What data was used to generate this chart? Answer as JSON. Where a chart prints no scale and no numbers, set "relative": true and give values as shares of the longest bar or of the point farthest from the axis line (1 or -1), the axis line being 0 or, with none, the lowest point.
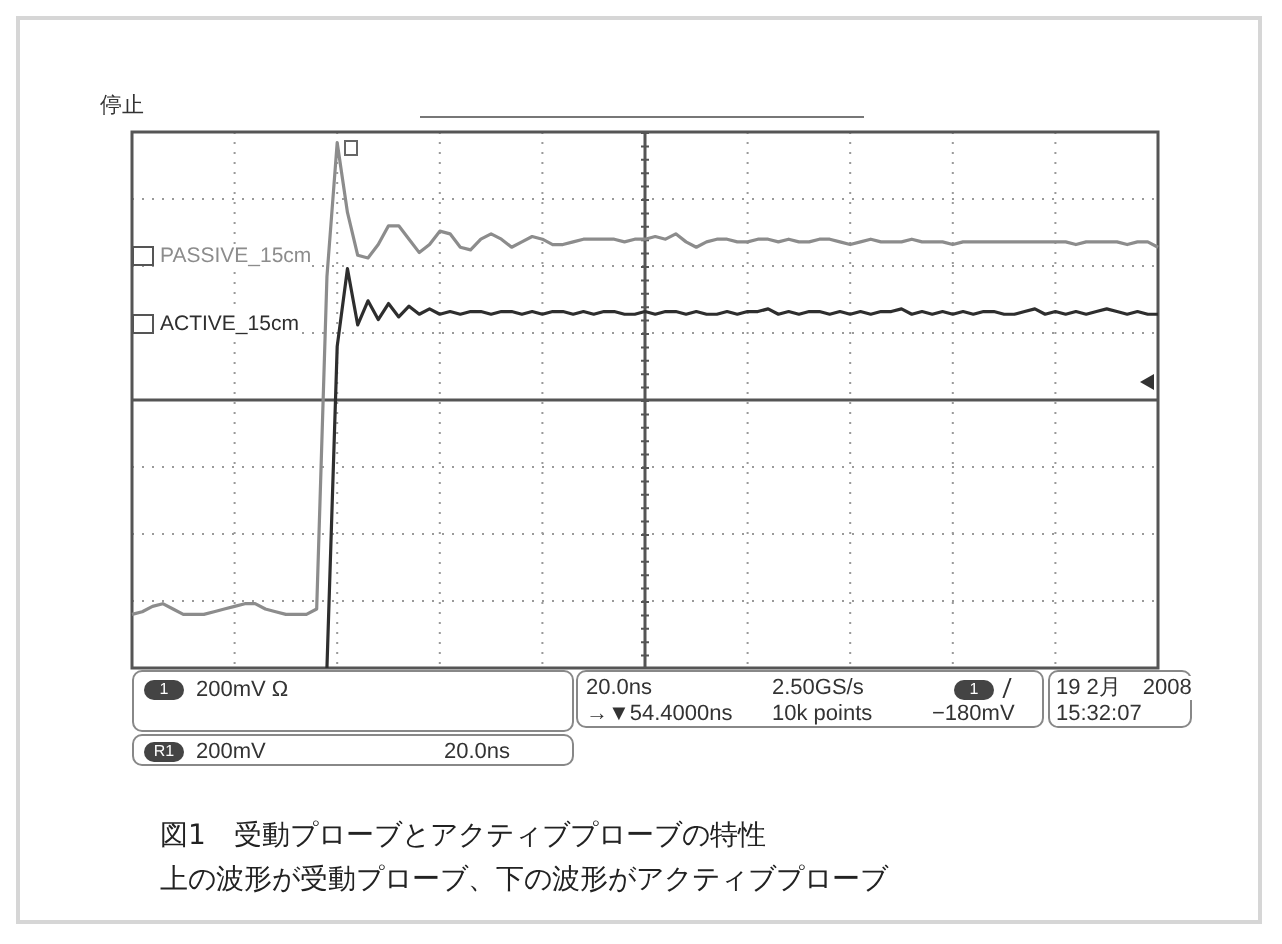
{
  "chart_data": {
    "type": "line",
    "title": "図1　受動プローブとアクティブプローブの特性",
    "subtitle": "上の波形が受動プローブ、下の波形がアクティブプローブ",
    "relative": true,
    "grid": true,
    "legend": false,
    "marker": "none",
    "line_style": "solid",
    "categories": [
      null,
      null,
      null,
      null,
      null,
      null,
      null,
      null,
      null,
      null,
      null,
      null,
      null,
      null,
      null,
      null,
      null,
      null,
      null,
      null,
      null,
      null,
      null,
      null,
      null,
      null,
      null,
      null,
      null,
      null,
      null,
      null,
      null,
      null,
      null,
      null,
      null,
      null,
      null,
      null,
      null,
      null,
      null,
      null,
      null,
      null,
      null,
      null,
      null,
      null,
      null,
      null,
      null,
      null,
      null,
      null,
      null,
      null,
      null,
      null,
      null,
      null,
      null,
      null,
      null,
      null,
      null,
      null,
      null,
      null,
      null,
      null,
      null,
      null,
      null,
      null,
      null,
      null,
      null,
      null,
      null,
      null,
      null,
      null,
      null,
      null,
      null,
      null,
      null,
      null,
      null,
      null,
      null,
      null,
      null,
      null,
      null,
      null,
      null,
      null,
      null
    ],
    "series": [
      {
        "name": "PASSIVE_15cm",
        "color": "#8c8c8c",
        "values": [
          -0.8,
          -0.79,
          -0.77,
          -0.76,
          -0.78,
          -0.8,
          -0.8,
          -0.8,
          -0.79,
          -0.78,
          -0.77,
          -0.76,
          -0.76,
          -0.78,
          -0.79,
          -0.8,
          -0.8,
          -0.8,
          -0.78,
          0.46,
          0.96,
          0.7,
          0.54,
          0.53,
          0.58,
          0.65,
          0.65,
          0.6,
          0.55,
          0.58,
          0.63,
          0.62,
          0.57,
          0.56,
          0.6,
          0.62,
          0.6,
          0.57,
          0.59,
          0.61,
          0.6,
          0.58,
          0.58,
          0.59,
          0.6,
          0.6,
          0.6,
          0.6,
          0.59,
          0.6,
          0.6,
          0.61,
          0.6,
          0.62,
          0.59,
          0.57,
          0.59,
          0.6,
          0.6,
          0.59,
          0.59,
          0.6,
          0.6,
          0.59,
          0.6,
          0.59,
          0.59,
          0.6,
          0.6,
          0.59,
          0.58,
          0.59,
          0.6,
          0.59,
          0.59,
          0.59,
          0.6,
          0.59,
          0.59,
          0.59,
          0.58,
          0.59,
          0.59,
          0.59,
          0.59,
          0.59,
          0.59,
          0.59,
          0.59,
          0.59,
          0.59,
          0.59,
          0.58,
          0.59,
          0.59,
          0.59,
          0.59,
          0.58,
          0.59,
          0.59,
          0.57
        ]
      },
      {
        "name": "ACTIVE_15cm",
        "color": "#2e2e2e",
        "values": [
          null,
          null,
          null,
          null,
          null,
          null,
          null,
          null,
          null,
          null,
          null,
          null,
          null,
          null,
          null,
          null,
          null,
          null,
          null,
          -1,
          0.2,
          0.49,
          0.28,
          0.37,
          0.3,
          0.36,
          0.31,
          0.35,
          0.32,
          0.34,
          0.32,
          0.33,
          0.32,
          0.33,
          0.33,
          0.32,
          0.33,
          0.33,
          0.32,
          0.33,
          0.32,
          0.33,
          0.33,
          0.32,
          0.33,
          0.32,
          0.33,
          0.33,
          0.32,
          0.32,
          0.33,
          0.32,
          0.33,
          0.33,
          0.32,
          0.33,
          0.32,
          0.32,
          0.33,
          0.32,
          0.33,
          0.33,
          0.34,
          0.32,
          0.33,
          0.32,
          0.33,
          0.33,
          0.32,
          0.33,
          0.32,
          0.33,
          0.32,
          0.33,
          0.33,
          0.34,
          0.32,
          0.33,
          0.32,
          0.33,
          0.32,
          0.33,
          0.32,
          0.33,
          0.33,
          0.32,
          0.32,
          0.33,
          0.34,
          0.32,
          0.33,
          0.32,
          0.33,
          0.32,
          0.33,
          0.34,
          0.33,
          0.32,
          0.33,
          0.32,
          0.32
        ]
      }
    ],
    "annotations": [
      "停止",
      "1",
      "200mV Ω",
      "R1",
      "200mV",
      "20.0ns",
      "20.0ns",
      "→▼54.4000ns",
      "2.50GS/s",
      "10k points",
      "1",
      "−180mV",
      "19 2月　2008",
      "15:32:07"
    ]
  }
}
